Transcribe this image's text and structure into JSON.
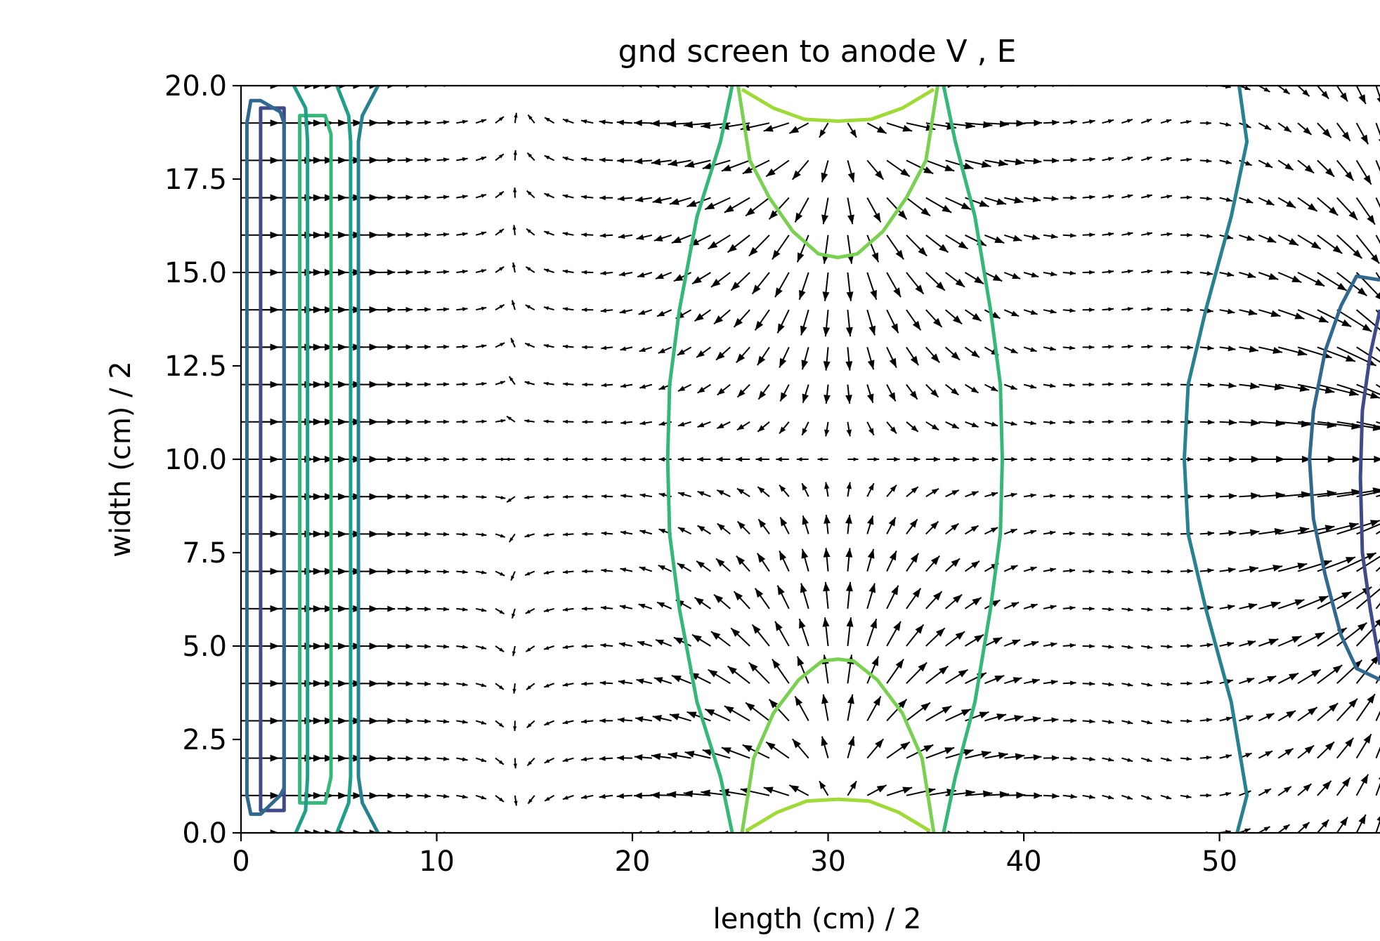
{
  "chart_data": {
    "type": "contour",
    "title": "gnd screen to anode V , E",
    "xlabel": "length (cm) / 2",
    "ylabel": "width (cm) / 2",
    "xlim": [
      0,
      58.2
    ],
    "ylim": [
      0,
      20
    ],
    "x_ticks": [
      "0",
      "10",
      "20",
      "30",
      "40",
      "50"
    ],
    "x_tick_values": [
      0,
      10,
      20,
      30,
      40,
      50
    ],
    "y_ticks": [
      "0.0",
      "2.5",
      "5.0",
      "7.5",
      "10.0",
      "12.5",
      "15.0",
      "17.5",
      "20.0"
    ],
    "y_tick_values": [
      0,
      2.5,
      5,
      7.5,
      10,
      12.5,
      15,
      17.5,
      20
    ],
    "grid": false,
    "quiver": {
      "x_start": 0,
      "x_step": 1,
      "y_start": 0,
      "y_step": 1,
      "color": "#000000"
    },
    "contours": [
      {
        "color": "#3e4a89",
        "closed": true,
        "points": [
          [
            1.0,
            0.6
          ],
          [
            2.2,
            0.6
          ],
          [
            2.2,
            19.4
          ],
          [
            1.0,
            19.4
          ]
        ]
      },
      {
        "color": "#31688e",
        "closed": true,
        "points": [
          [
            0.5,
            0.5
          ],
          [
            1.0,
            0.5
          ],
          [
            2.0,
            1.0
          ],
          [
            2.2,
            1.2
          ],
          [
            2.2,
            19.0
          ],
          [
            2.0,
            19.3
          ],
          [
            1.0,
            19.6
          ],
          [
            0.5,
            19.6
          ],
          [
            0.3,
            19.0
          ],
          [
            0.3,
            1.0
          ]
        ]
      },
      {
        "color": "#35b779",
        "closed": true,
        "points": [
          [
            3.0,
            0.8
          ],
          [
            4.3,
            0.8
          ],
          [
            4.6,
            1.5
          ],
          [
            4.6,
            18.7
          ],
          [
            4.3,
            19.2
          ],
          [
            3.0,
            19.2
          ]
        ]
      },
      {
        "color": "#1f9e89",
        "closed": false,
        "points": [
          [
            2.7,
            20
          ],
          [
            3.3,
            19.4
          ],
          [
            3.4,
            18.5
          ],
          [
            3.4,
            1.5
          ],
          [
            3.3,
            0.6
          ],
          [
            2.8,
            0
          ]
        ]
      },
      {
        "color": "#1f9e89",
        "closed": false,
        "points": [
          [
            4.9,
            20
          ],
          [
            5.5,
            19.2
          ],
          [
            5.6,
            18.5
          ],
          [
            5.6,
            1.5
          ],
          [
            5.5,
            0.8
          ],
          [
            4.9,
            0
          ]
        ]
      },
      {
        "color": "#26828e",
        "closed": false,
        "points": [
          [
            7.0,
            20
          ],
          [
            6.2,
            19.2
          ],
          [
            6.0,
            18.5
          ],
          [
            6.0,
            1.5
          ],
          [
            6.2,
            0.8
          ],
          [
            7.0,
            0
          ]
        ]
      },
      {
        "color": "#35b779",
        "closed": false,
        "points": [
          [
            25.1,
            20
          ],
          [
            24.5,
            18.5
          ],
          [
            23.3,
            16.5
          ],
          [
            22.4,
            14
          ],
          [
            21.9,
            12
          ],
          [
            21.8,
            10
          ],
          [
            21.9,
            8
          ],
          [
            22.4,
            6
          ],
          [
            23.3,
            3.5
          ],
          [
            24.5,
            1.5
          ],
          [
            25.1,
            0
          ]
        ]
      },
      {
        "color": "#35b779",
        "closed": false,
        "points": [
          [
            35.9,
            20
          ],
          [
            36.5,
            18.5
          ],
          [
            37.5,
            16.5
          ],
          [
            38.3,
            14
          ],
          [
            38.8,
            12
          ],
          [
            38.9,
            10
          ],
          [
            38.8,
            8
          ],
          [
            38.3,
            6
          ],
          [
            37.5,
            3.5
          ],
          [
            36.5,
            1.5
          ],
          [
            35.9,
            0
          ]
        ]
      },
      {
        "color": "#7ad151",
        "closed": false,
        "points": [
          [
            25.4,
            20
          ],
          [
            26.0,
            18.0
          ],
          [
            27.0,
            17.0
          ],
          [
            28.2,
            16.1
          ],
          [
            29.5,
            15.5
          ],
          [
            30.5,
            15.4
          ],
          [
            31.5,
            15.5
          ],
          [
            32.8,
            16.1
          ],
          [
            34.0,
            17.0
          ],
          [
            35.0,
            18.0
          ],
          [
            35.6,
            20
          ]
        ]
      },
      {
        "color": "#7ad151",
        "closed": false,
        "points": [
          [
            25.6,
            0
          ],
          [
            26.2,
            2.0
          ],
          [
            27.2,
            3.2
          ],
          [
            28.5,
            4.1
          ],
          [
            29.7,
            4.6
          ],
          [
            30.5,
            4.65
          ],
          [
            31.3,
            4.6
          ],
          [
            32.5,
            4.1
          ],
          [
            33.8,
            3.2
          ],
          [
            34.8,
            2.0
          ],
          [
            35.4,
            0
          ]
        ]
      },
      {
        "color": "#a0da39",
        "closed": false,
        "points": [
          [
            25.6,
            19.9
          ],
          [
            27.2,
            19.4
          ],
          [
            28.8,
            19.1
          ],
          [
            30.5,
            19.05
          ],
          [
            32.2,
            19.1
          ],
          [
            33.8,
            19.4
          ],
          [
            35.4,
            19.9
          ]
        ]
      },
      {
        "color": "#a0da39",
        "closed": false,
        "points": [
          [
            25.8,
            0.05
          ],
          [
            27.4,
            0.55
          ],
          [
            28.9,
            0.85
          ],
          [
            30.5,
            0.9
          ],
          [
            32.1,
            0.85
          ],
          [
            33.6,
            0.55
          ],
          [
            35.2,
            0.05
          ]
        ]
      },
      {
        "color": "#26828e",
        "closed": false,
        "points": [
          [
            51.0,
            20
          ],
          [
            51.4,
            18.5
          ],
          [
            50.6,
            16.5
          ],
          [
            49.3,
            14
          ],
          [
            48.4,
            12
          ],
          [
            48.2,
            10
          ],
          [
            48.4,
            8
          ],
          [
            49.3,
            6
          ],
          [
            50.6,
            3.5
          ],
          [
            51.4,
            1.0
          ],
          [
            50.9,
            0
          ]
        ]
      },
      {
        "color": "#31688e",
        "closed": false,
        "points": [
          [
            58.2,
            14.8
          ],
          [
            57.0,
            14.9
          ],
          [
            56.2,
            14.1
          ],
          [
            55.4,
            12.9
          ],
          [
            54.8,
            11.3
          ],
          [
            54.6,
            10.0
          ],
          [
            54.8,
            8.4
          ],
          [
            55.4,
            6.9
          ],
          [
            56.2,
            5.3
          ],
          [
            57.0,
            4.4
          ],
          [
            58.2,
            4.1
          ]
        ]
      },
      {
        "color": "#3e4a89",
        "closed": false,
        "points": [
          [
            58.2,
            14.0
          ],
          [
            57.7,
            12.8
          ],
          [
            57.3,
            11.3
          ],
          [
            57.2,
            9.5
          ],
          [
            57.3,
            7.5
          ],
          [
            57.7,
            6.0
          ],
          [
            58.2,
            4.5
          ]
        ]
      }
    ]
  }
}
